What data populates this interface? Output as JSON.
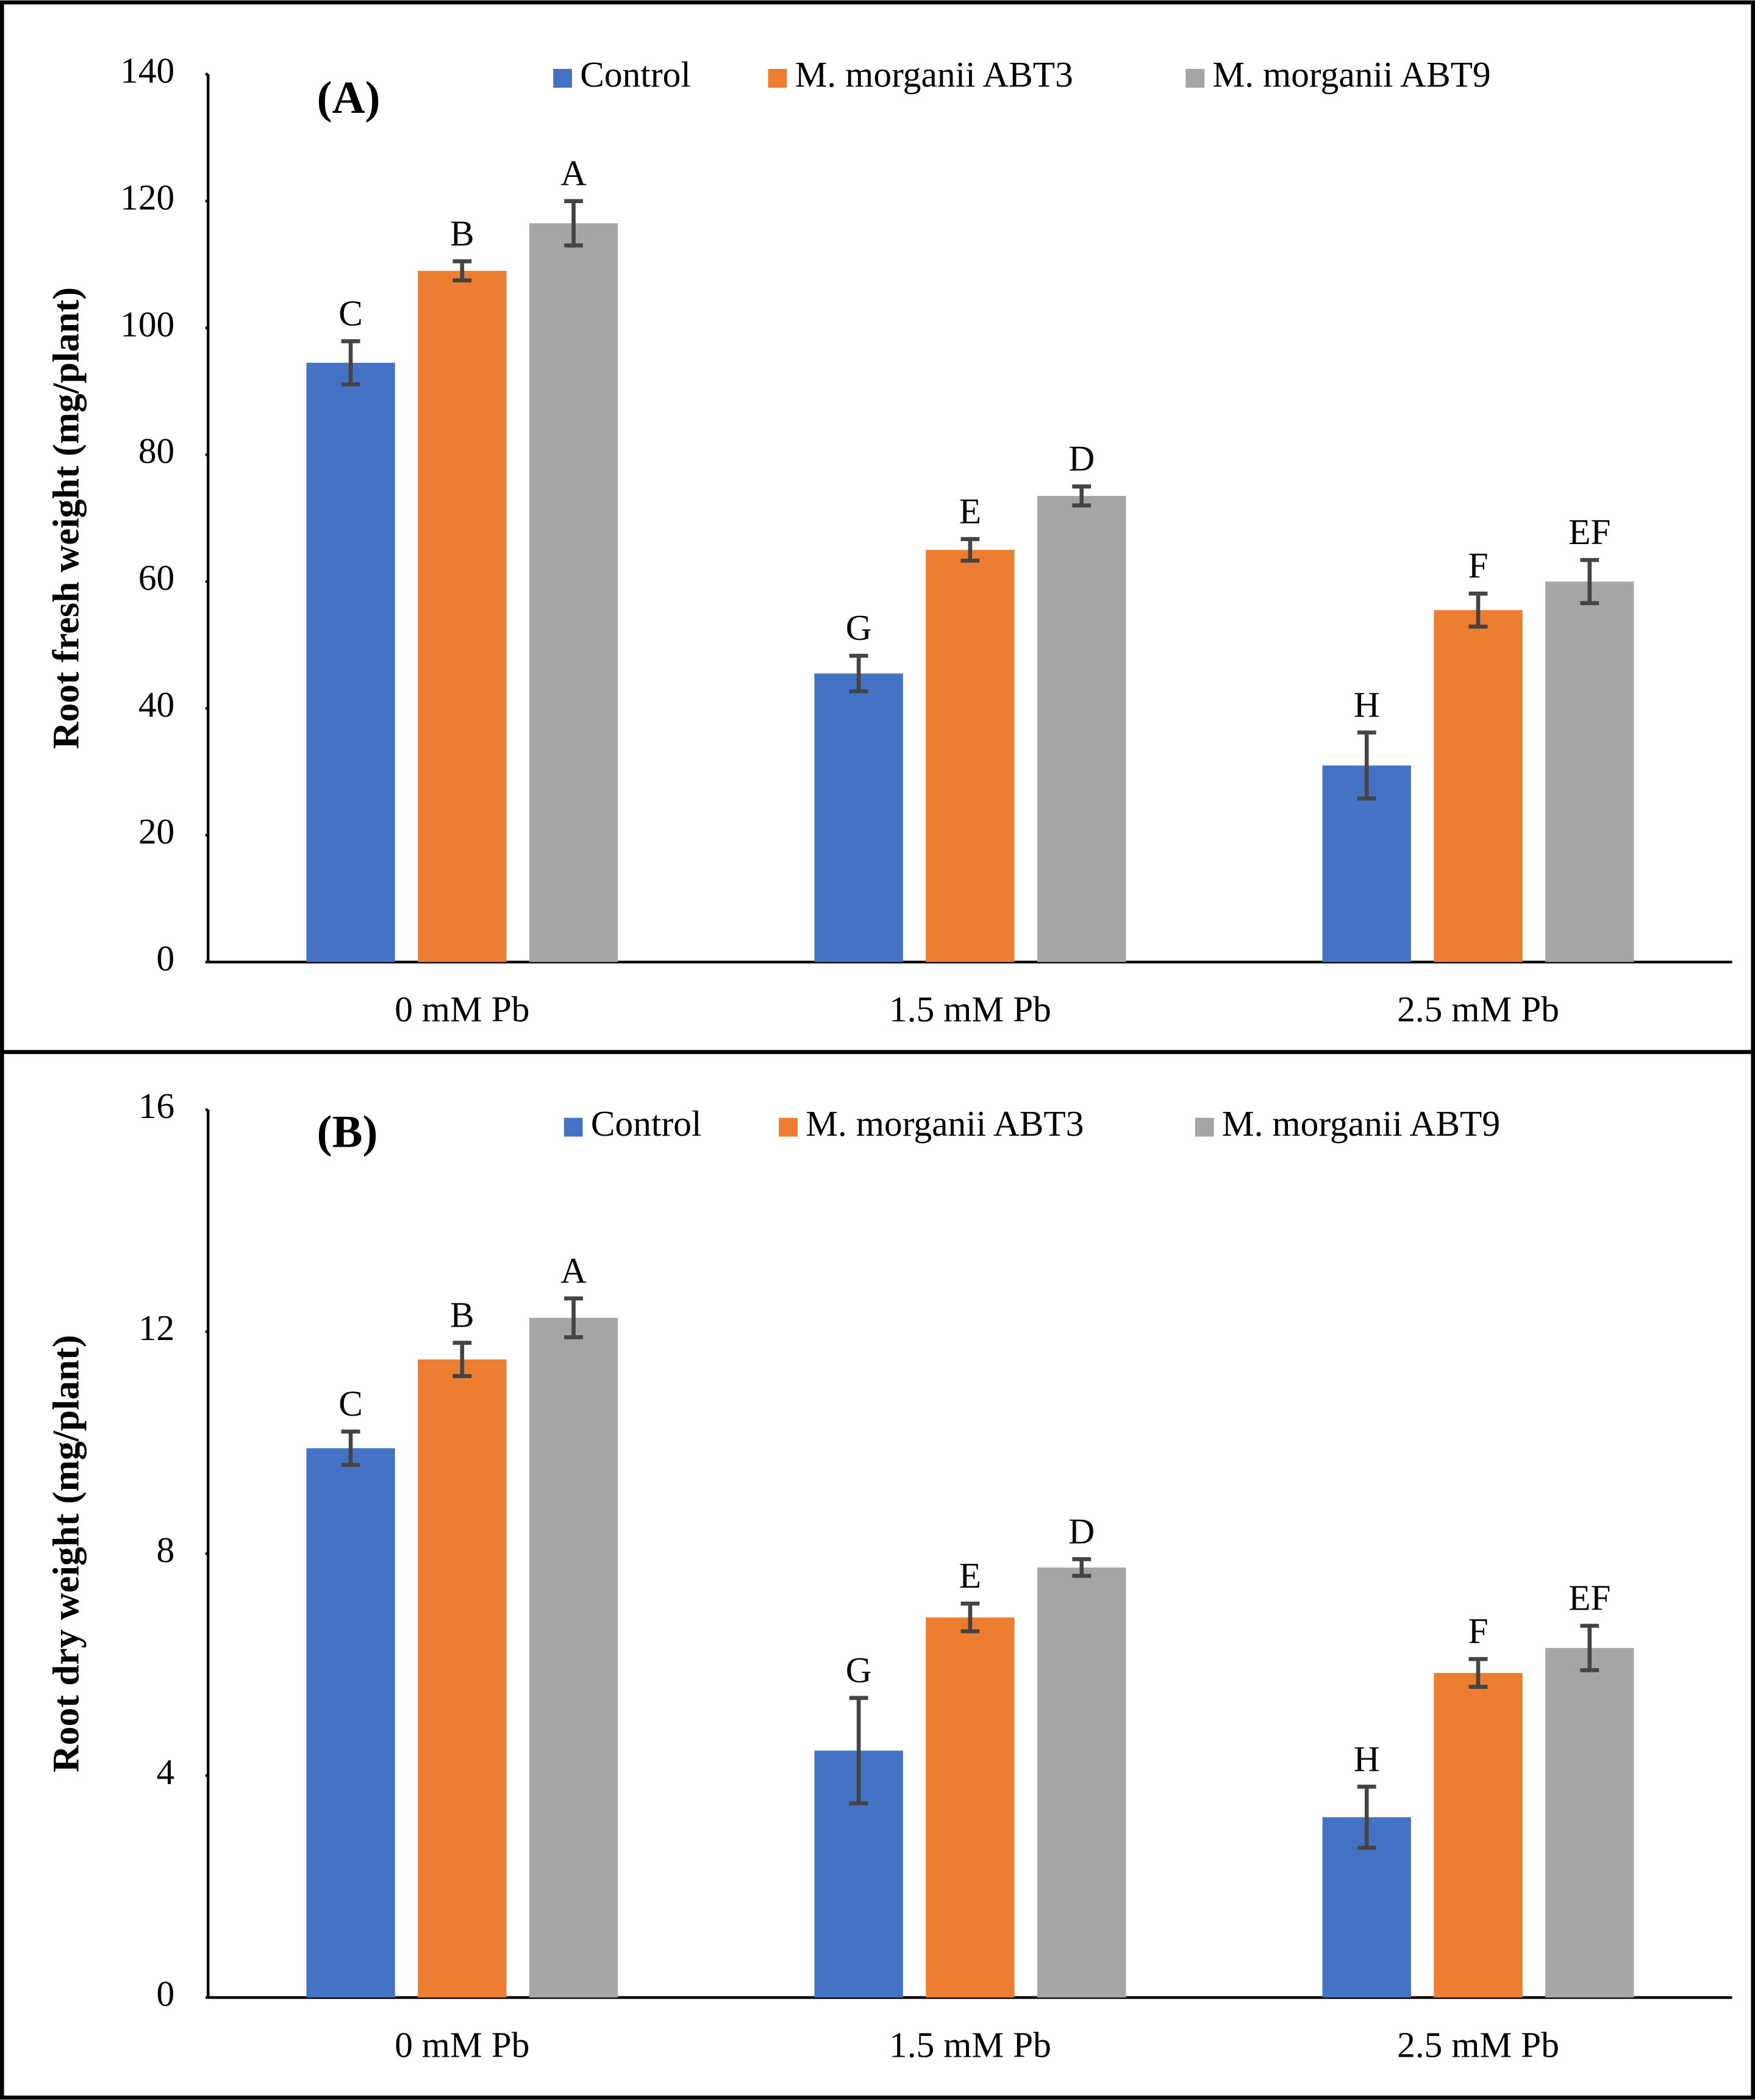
{
  "chart_data": [
    {
      "type": "bar",
      "title": "(A)",
      "y_label": "Root fresh weight (mg/plant)",
      "legend": "top",
      "categories": [
        "0 mM Pb",
        "1.5 mM Pb",
        "2.5 mM Pb"
      ],
      "series": [
        {
          "name": "Control",
          "color": "#4472c4",
          "values": [
            94.5,
            45.5,
            31
          ],
          "errors": [
            3.4,
            2.8,
            5.2
          ],
          "labels": [
            "C",
            "G",
            "H"
          ]
        },
        {
          "name": "M. morganii ABT3",
          "color": "#ed7d31",
          "values": [
            109,
            65,
            55.5
          ],
          "errors": [
            1.5,
            1.7,
            2.6
          ],
          "labels": [
            "B",
            "E",
            "F"
          ]
        },
        {
          "name": "M. morganii  ABT9",
          "color": "#a5a5a5",
          "values": [
            116.5,
            73.5,
            60
          ],
          "errors": [
            3.5,
            1.5,
            3.4
          ],
          "labels": [
            "A",
            "D",
            "EF"
          ]
        }
      ],
      "ylim": [
        0,
        140
      ],
      "yticks": [
        0,
        20,
        40,
        60,
        80,
        100,
        120,
        140
      ]
    },
    {
      "type": "bar",
      "title": "(B)",
      "y_label": "Root dry weight (mg/plant)",
      "legend": "top",
      "categories": [
        "0 mM Pb",
        "1.5 mM Pb",
        "2.5 mM Pb"
      ],
      "series": [
        {
          "name": "Control",
          "color": "#4472c4",
          "values": [
            9.9,
            4.45,
            3.25
          ],
          "errors": [
            0.3,
            0.95,
            0.55
          ],
          "labels": [
            "C",
            "G",
            "H"
          ]
        },
        {
          "name": "M. morganii ABT3",
          "color": "#ed7d31",
          "values": [
            11.5,
            6.85,
            5.85
          ],
          "errors": [
            0.3,
            0.25,
            0.25
          ],
          "labels": [
            "B",
            "E",
            "F"
          ]
        },
        {
          "name": "M. morganii  ABT9",
          "color": "#a5a5a5",
          "values": [
            12.25,
            7.75,
            6.3
          ],
          "errors": [
            0.35,
            0.15,
            0.4
          ],
          "labels": [
            "A",
            "D",
            "EF"
          ]
        }
      ],
      "ylim": [
        0,
        16
      ],
      "yticks": [
        0,
        4,
        8,
        12,
        16
      ]
    }
  ]
}
